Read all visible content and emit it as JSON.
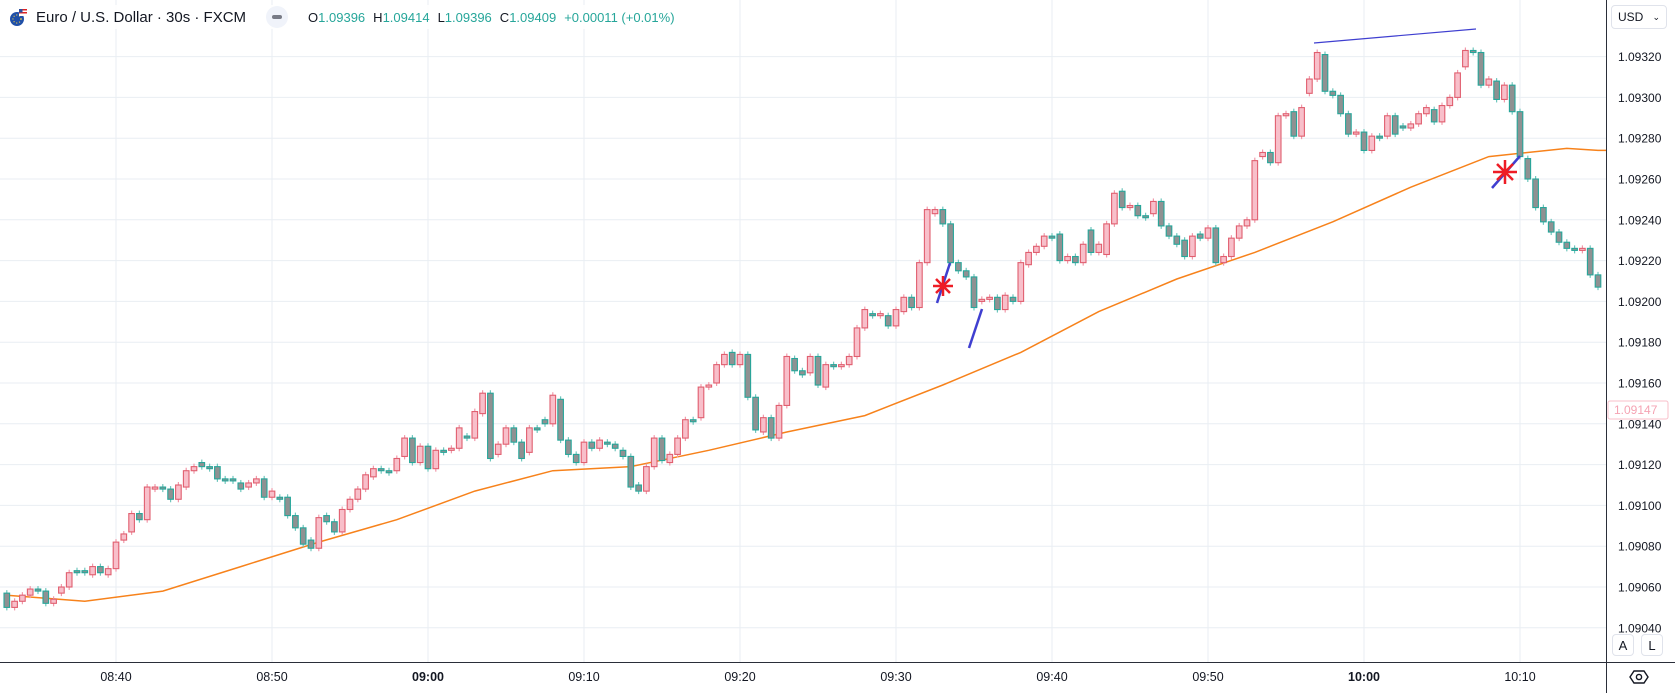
{
  "header": {
    "title": "Euro / U.S. Dollar · 30s · FXCM",
    "ohlc": [
      {
        "key": "O",
        "value": "1.09396"
      },
      {
        "key": "H",
        "value": "1.09414"
      },
      {
        "key": "L",
        "value": "1.09396"
      },
      {
        "key": "C",
        "value": "1.09409"
      }
    ],
    "change": "+0.00011 (+0.01%)",
    "symbol_icon": "eur-usd-flag-icon",
    "collapse_icon": "minus-icon"
  },
  "price_axis": {
    "currency": "USD",
    "current_price_label": "1.09147",
    "auto_button": "A",
    "log_button": "L"
  },
  "colors": {
    "up_fill": "#f8bfca",
    "up_border": "#e05f6f",
    "down_fill": "#8f9192",
    "down_border": "#26a69a",
    "moving_average": "#f7821b",
    "drawing_line": "#3f3fd0",
    "drawing_marker": "#ee1c25",
    "ohlc_text": "#26a69a"
  },
  "chart_data": {
    "type": "candlestick",
    "interval": "30s",
    "y_ticks": [
      "1.09320",
      "1.09300",
      "1.09280",
      "1.09260",
      "1.09240",
      "1.09220",
      "1.09200",
      "1.09180",
      "1.09160",
      "1.09140",
      "1.09120",
      "1.09100",
      "1.09080",
      "1.09060",
      "1.09040"
    ],
    "ylim": [
      1.0903,
      1.09344
    ],
    "x_ticks": [
      {
        "label": "08:40",
        "bold": false
      },
      {
        "label": "08:50",
        "bold": false
      },
      {
        "label": "09:00",
        "bold": true
      },
      {
        "label": "09:10",
        "bold": false
      },
      {
        "label": "09:20",
        "bold": false
      },
      {
        "label": "09:30",
        "bold": false
      },
      {
        "label": "09:40",
        "bold": false
      },
      {
        "label": "09:50",
        "bold": false
      },
      {
        "label": "10:00",
        "bold": true
      },
      {
        "label": "10:10",
        "bold": false
      }
    ],
    "grid": true,
    "candles_open_close": [
      [
        1.09057,
        1.0905
      ],
      [
        1.0905,
        1.09053
      ],
      [
        1.09053,
        1.09056
      ],
      [
        1.09056,
        1.09059
      ],
      [
        1.09059,
        1.09058
      ],
      [
        1.09058,
        1.09052
      ],
      [
        1.09052,
        1.09054
      ],
      [
        1.09057,
        1.0906
      ],
      [
        1.0906,
        1.09067
      ],
      [
        1.09068,
        1.09067
      ],
      [
        1.09068,
        1.09067
      ],
      [
        1.09066,
        1.0907
      ],
      [
        1.0907,
        1.09067
      ],
      [
        1.09066,
        1.09069
      ],
      [
        1.09069,
        1.09082
      ],
      [
        1.09083,
        1.09086
      ],
      [
        1.09087,
        1.09096
      ],
      [
        1.09096,
        1.09093
      ],
      [
        1.09093,
        1.09109
      ],
      [
        1.09108,
        1.09109
      ],
      [
        1.09109,
        1.09108
      ],
      [
        1.09108,
        1.09103
      ],
      [
        1.09103,
        1.0911
      ],
      [
        1.09109,
        1.09117
      ],
      [
        1.09117,
        1.09119
      ],
      [
        1.09121,
        1.09119
      ],
      [
        1.09119,
        1.09118
      ],
      [
        1.09119,
        1.09113
      ],
      [
        1.09113,
        1.09112
      ],
      [
        1.09113,
        1.09112
      ],
      [
        1.09111,
        1.09108
      ],
      [
        1.09109,
        1.09111
      ],
      [
        1.09111,
        1.09113
      ],
      [
        1.09113,
        1.09104
      ],
      [
        1.09104,
        1.09107
      ],
      [
        1.09104,
        1.09103
      ],
      [
        1.09104,
        1.09095
      ],
      [
        1.09095,
        1.09089
      ],
      [
        1.09089,
        1.09081
      ],
      [
        1.09083,
        1.09079
      ],
      [
        1.09079,
        1.09094
      ],
      [
        1.09095,
        1.09092
      ],
      [
        1.09092,
        1.09087
      ],
      [
        1.09087,
        1.09098
      ],
      [
        1.09098,
        1.09103
      ],
      [
        1.09103,
        1.09108
      ],
      [
        1.09108,
        1.09115
      ],
      [
        1.09114,
        1.09118
      ],
      [
        1.09118,
        1.09117
      ],
      [
        1.09117,
        1.09116
      ],
      [
        1.09117,
        1.09123
      ],
      [
        1.09124,
        1.09133
      ],
      [
        1.09133,
        1.09121
      ],
      [
        1.09121,
        1.09129
      ],
      [
        1.09129,
        1.09118
      ],
      [
        1.09118,
        1.09127
      ],
      [
        1.09127,
        1.09126
      ],
      [
        1.09127,
        1.09128
      ],
      [
        1.09128,
        1.09138
      ],
      [
        1.09134,
        1.09133
      ],
      [
        1.09133,
        1.09146
      ],
      [
        1.09145,
        1.09155
      ],
      [
        1.09155,
        1.09123
      ],
      [
        1.09125,
        1.0913
      ],
      [
        1.0913,
        1.09138
      ],
      [
        1.09138,
        1.09131
      ],
      [
        1.09131,
        1.09123
      ],
      [
        1.09126,
        1.09138
      ],
      [
        1.09138,
        1.09137
      ],
      [
        1.09142,
        1.0914
      ],
      [
        1.0914,
        1.09154
      ],
      [
        1.09152,
        1.09132
      ],
      [
        1.09132,
        1.09125
      ],
      [
        1.09125,
        1.09121
      ],
      [
        1.09121,
        1.09131
      ],
      [
        1.09131,
        1.09128
      ],
      [
        1.09128,
        1.09132
      ],
      [
        1.09131,
        1.0913
      ],
      [
        1.0913,
        1.09128
      ],
      [
        1.09127,
        1.09124
      ],
      [
        1.09124,
        1.09109
      ],
      [
        1.0911,
        1.09107
      ],
      [
        1.09107,
        1.09119
      ],
      [
        1.09119,
        1.09133
      ],
      [
        1.09133,
        1.09122
      ],
      [
        1.09121,
        1.09125
      ],
      [
        1.09125,
        1.09133
      ],
      [
        1.09133,
        1.09142
      ],
      [
        1.09142,
        1.09141
      ],
      [
        1.09143,
        1.09158
      ],
      [
        1.09158,
        1.09159
      ],
      [
        1.0916,
        1.09169
      ],
      [
        1.09169,
        1.09174
      ],
      [
        1.09175,
        1.09169
      ],
      [
        1.09169,
        1.09174
      ],
      [
        1.09174,
        1.09153
      ],
      [
        1.09153,
        1.09137
      ],
      [
        1.09136,
        1.09143
      ],
      [
        1.09143,
        1.09133
      ],
      [
        1.09133,
        1.09149
      ],
      [
        1.09149,
        1.09173
      ],
      [
        1.09172,
        1.09166
      ],
      [
        1.09166,
        1.09164
      ],
      [
        1.09165,
        1.09173
      ],
      [
        1.09173,
        1.09159
      ],
      [
        1.09158,
        1.09169
      ],
      [
        1.09169,
        1.09168
      ],
      [
        1.09168,
        1.09169
      ],
      [
        1.09169,
        1.09173
      ],
      [
        1.09173,
        1.09187
      ],
      [
        1.09187,
        1.09196
      ],
      [
        1.09194,
        1.09193
      ],
      [
        1.09193,
        1.09194
      ],
      [
        1.09193,
        1.09188
      ],
      [
        1.09188,
        1.09196
      ],
      [
        1.09195,
        1.09202
      ],
      [
        1.09202,
        1.09197
      ],
      [
        1.09197,
        1.09219
      ],
      [
        1.09219,
        1.09245
      ],
      [
        1.09243,
        1.09245
      ],
      [
        1.09245,
        1.09238
      ],
      [
        1.09238,
        1.09219
      ],
      [
        1.09219,
        1.09215
      ],
      [
        1.09215,
        1.09212
      ],
      [
        1.09212,
        1.09197
      ],
      [
        1.092,
        1.09201
      ],
      [
        1.09201,
        1.09202
      ],
      [
        1.09202,
        1.09196
      ],
      [
        1.09196,
        1.09203
      ],
      [
        1.09202,
        1.092
      ],
      [
        1.092,
        1.09219
      ],
      [
        1.09218,
        1.09224
      ],
      [
        1.09224,
        1.09227
      ],
      [
        1.09227,
        1.09232
      ],
      [
        1.09232,
        1.09231
      ],
      [
        1.09233,
        1.0922
      ],
      [
        1.0922,
        1.09222
      ],
      [
        1.09222,
        1.09219
      ],
      [
        1.09219,
        1.09228
      ],
      [
        1.09235,
        1.09224
      ],
      [
        1.09224,
        1.09228
      ],
      [
        1.09223,
        1.09238
      ],
      [
        1.09238,
        1.09253
      ],
      [
        1.09254,
        1.09246
      ],
      [
        1.09246,
        1.09247
      ],
      [
        1.09247,
        1.09242
      ],
      [
        1.09242,
        1.09241
      ],
      [
        1.09243,
        1.09249
      ],
      [
        1.09249,
        1.09237
      ],
      [
        1.09237,
        1.09232
      ],
      [
        1.09232,
        1.09228
      ],
      [
        1.0923,
        1.09222
      ],
      [
        1.09222,
        1.09232
      ],
      [
        1.09233,
        1.09231
      ],
      [
        1.09231,
        1.09236
      ],
      [
        1.09236,
        1.09219
      ],
      [
        1.09219,
        1.09222
      ],
      [
        1.09222,
        1.09231
      ],
      [
        1.09231,
        1.09237
      ],
      [
        1.09237,
        1.0924
      ],
      [
        1.0924,
        1.09269
      ],
      [
        1.09271,
        1.09273
      ],
      [
        1.09273,
        1.09268
      ],
      [
        1.09268,
        1.09291
      ],
      [
        1.09291,
        1.09292
      ],
      [
        1.09293,
        1.09281
      ],
      [
        1.09281,
        1.09295
      ],
      [
        1.09302,
        1.09309
      ],
      [
        1.09309,
        1.09322
      ],
      [
        1.09321,
        1.09303
      ],
      [
        1.09303,
        1.09301
      ],
      [
        1.09301,
        1.09292
      ],
      [
        1.09292,
        1.09282
      ],
      [
        1.09282,
        1.09283
      ],
      [
        1.09283,
        1.09274
      ],
      [
        1.09274,
        1.09281
      ],
      [
        1.09281,
        1.0928
      ],
      [
        1.09281,
        1.09291
      ],
      [
        1.09291,
        1.09282
      ],
      [
        1.09286,
        1.09285
      ],
      [
        1.09285,
        1.09287
      ],
      [
        1.09287,
        1.09292
      ],
      [
        1.09292,
        1.09295
      ],
      [
        1.09294,
        1.09288
      ],
      [
        1.09288,
        1.09296
      ],
      [
        1.09296,
        1.093
      ],
      [
        1.093,
        1.09312
      ],
      [
        1.09315,
        1.09323
      ],
      [
        1.09323,
        1.09322
      ],
      [
        1.09322,
        1.09306
      ],
      [
        1.09306,
        1.09309
      ],
      [
        1.09308,
        1.09299
      ],
      [
        1.09299,
        1.09306
      ],
      [
        1.09306,
        1.09293
      ],
      [
        1.09293,
        1.09271
      ],
      [
        1.0927,
        1.0926
      ],
      [
        1.0926,
        1.09246
      ],
      [
        1.09246,
        1.09239
      ],
      [
        1.09239,
        1.09234
      ],
      [
        1.09234,
        1.09229
      ],
      [
        1.09229,
        1.09226
      ],
      [
        1.09226,
        1.09225
      ],
      [
        1.09225,
        1.09226
      ],
      [
        1.09226,
        1.09213
      ],
      [
        1.09213,
        1.09207
      ]
    ],
    "moving_average_every_10_bars": [
      1.09056,
      1.09053,
      1.09058,
      1.0907,
      1.09082,
      1.09093,
      1.09107,
      1.09117,
      1.09119,
      1.09127,
      1.09136,
      1.09144,
      1.09159,
      1.09175,
      1.09195,
      1.09211,
      1.09224,
      1.09239,
      1.09256,
      1.09271,
      1.09275,
      1.09274
    ]
  }
}
